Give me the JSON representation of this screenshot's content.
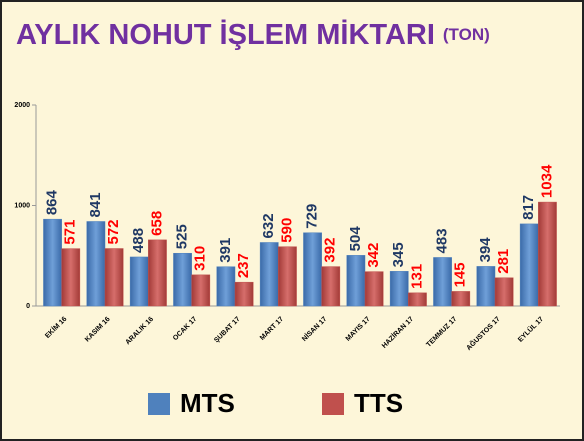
{
  "chart_data": {
    "type": "bar",
    "title": "AYLIK NOHUT İŞLEM MİKTARI",
    "title_suffix": "(TON)",
    "categories": [
      "EKİM 16",
      "KASIM 16",
      "ARALIK 16",
      "OCAK 17",
      "ŞUBAT 17",
      "MART 17",
      "NİSAN 17",
      "MAYIS 17",
      "HAZİRAN 17",
      "TEMMUZ 17",
      "AĞUSTOS 17",
      "EYLÜL 17"
    ],
    "series": [
      {
        "name": "MTS",
        "color": "#4f81bd",
        "label_color": "#1f3864",
        "values": [
          864,
          841,
          488,
          525,
          391,
          632,
          729,
          504,
          345,
          483,
          394,
          817
        ]
      },
      {
        "name": "TTS",
        "color": "#c0504d",
        "label_color": "#ff0000",
        "values": [
          571,
          572,
          658,
          310,
          237,
          590,
          392,
          342,
          131,
          145,
          281,
          1034
        ]
      }
    ],
    "ylim": [
      0,
      2000
    ],
    "yticks": [
      0,
      1000,
      2000
    ],
    "legend": "bottom"
  }
}
